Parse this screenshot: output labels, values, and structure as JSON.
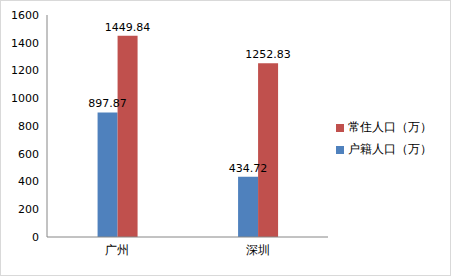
{
  "chart_data": {
    "type": "bar",
    "categories": [
      "广州",
      "深圳"
    ],
    "series": [
      {
        "name": "户籍人口（万）",
        "color": "#4f81bd",
        "values": [
          897.87,
          434.72
        ]
      },
      {
        "name": "常住人口（万）",
        "color": "#c0504d",
        "values": [
          1449.84,
          1252.83
        ]
      }
    ],
    "ylim": [
      0,
      1600
    ],
    "yticks": [
      0,
      200,
      400,
      600,
      800,
      1000,
      1200,
      1400,
      1600
    ],
    "grid": false,
    "legend": "right",
    "data_labels": true
  }
}
